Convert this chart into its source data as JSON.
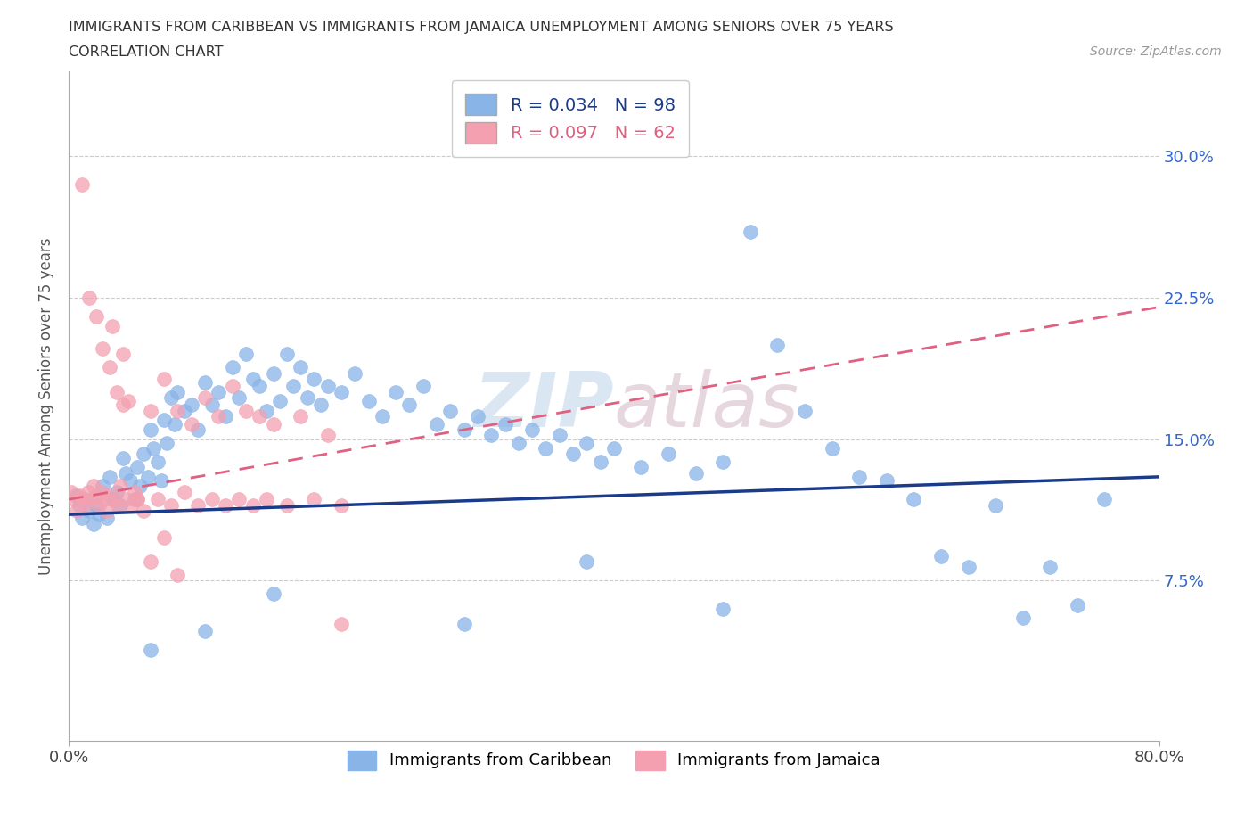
{
  "title_line1": "IMMIGRANTS FROM CARIBBEAN VS IMMIGRANTS FROM JAMAICA UNEMPLOYMENT AMONG SENIORS OVER 75 YEARS",
  "title_line2": "CORRELATION CHART",
  "source_text": "Source: ZipAtlas.com",
  "ylabel": "Unemployment Among Seniors over 75 years",
  "xlim": [
    0.0,
    0.8
  ],
  "ylim": [
    -0.01,
    0.345
  ],
  "ytick_vals": [
    0.075,
    0.15,
    0.225,
    0.3
  ],
  "ytick_labels": [
    "7.5%",
    "15.0%",
    "22.5%",
    "30.0%"
  ],
  "xtick_vals": [
    0.0,
    0.8
  ],
  "xtick_labels": [
    "0.0%",
    "80.0%"
  ],
  "caribbean_color": "#89b4e8",
  "jamaica_color": "#f4a0b0",
  "caribbean_R": 0.034,
  "caribbean_N": 98,
  "jamaica_R": 0.097,
  "jamaica_N": 62,
  "caribbean_label": "Immigrants from Caribbean",
  "jamaica_label": "Immigrants from Jamaica",
  "grid_color": "#cccccc",
  "caribbean_trend_color": "#1a3a8a",
  "jamaica_trend_color": "#e06080",
  "right_tick_color": "#3366cc",
  "background_color": "#ffffff",
  "caribbean_x": [
    0.005,
    0.008,
    0.01,
    0.012,
    0.015,
    0.018,
    0.02,
    0.022,
    0.025,
    0.028,
    0.03,
    0.032,
    0.035,
    0.038,
    0.04,
    0.042,
    0.045,
    0.048,
    0.05,
    0.052,
    0.055,
    0.058,
    0.06,
    0.062,
    0.065,
    0.068,
    0.07,
    0.072,
    0.075,
    0.078,
    0.08,
    0.085,
    0.09,
    0.095,
    0.1,
    0.105,
    0.11,
    0.115,
    0.12,
    0.125,
    0.13,
    0.135,
    0.14,
    0.145,
    0.15,
    0.155,
    0.16,
    0.165,
    0.17,
    0.175,
    0.18,
    0.185,
    0.19,
    0.2,
    0.21,
    0.22,
    0.23,
    0.24,
    0.25,
    0.26,
    0.27,
    0.28,
    0.29,
    0.3,
    0.31,
    0.32,
    0.33,
    0.34,
    0.35,
    0.36,
    0.37,
    0.38,
    0.39,
    0.4,
    0.42,
    0.44,
    0.46,
    0.48,
    0.5,
    0.52,
    0.54,
    0.56,
    0.58,
    0.6,
    0.62,
    0.64,
    0.66,
    0.68,
    0.7,
    0.72,
    0.74,
    0.76,
    0.48,
    0.38,
    0.29,
    0.15,
    0.1,
    0.06
  ],
  "caribbean_y": [
    0.12,
    0.115,
    0.108,
    0.118,
    0.112,
    0.105,
    0.115,
    0.11,
    0.125,
    0.108,
    0.13,
    0.118,
    0.122,
    0.115,
    0.14,
    0.132,
    0.128,
    0.118,
    0.135,
    0.125,
    0.142,
    0.13,
    0.155,
    0.145,
    0.138,
    0.128,
    0.16,
    0.148,
    0.172,
    0.158,
    0.175,
    0.165,
    0.168,
    0.155,
    0.18,
    0.168,
    0.175,
    0.162,
    0.188,
    0.172,
    0.195,
    0.182,
    0.178,
    0.165,
    0.185,
    0.17,
    0.195,
    0.178,
    0.188,
    0.172,
    0.182,
    0.168,
    0.178,
    0.175,
    0.185,
    0.17,
    0.162,
    0.175,
    0.168,
    0.178,
    0.158,
    0.165,
    0.155,
    0.162,
    0.152,
    0.158,
    0.148,
    0.155,
    0.145,
    0.152,
    0.142,
    0.148,
    0.138,
    0.145,
    0.135,
    0.142,
    0.132,
    0.138,
    0.26,
    0.2,
    0.165,
    0.145,
    0.13,
    0.128,
    0.118,
    0.088,
    0.082,
    0.115,
    0.055,
    0.082,
    0.062,
    0.118,
    0.06,
    0.085,
    0.052,
    0.068,
    0.048,
    0.038
  ],
  "jamaica_x": [
    0.002,
    0.004,
    0.006,
    0.008,
    0.01,
    0.012,
    0.014,
    0.016,
    0.018,
    0.02,
    0.022,
    0.024,
    0.026,
    0.028,
    0.03,
    0.032,
    0.034,
    0.036,
    0.038,
    0.04,
    0.042,
    0.044,
    0.046,
    0.048,
    0.05,
    0.055,
    0.06,
    0.065,
    0.07,
    0.075,
    0.08,
    0.085,
    0.09,
    0.095,
    0.1,
    0.105,
    0.11,
    0.115,
    0.12,
    0.125,
    0.13,
    0.135,
    0.14,
    0.145,
    0.15,
    0.16,
    0.17,
    0.18,
    0.19,
    0.2,
    0.01,
    0.015,
    0.02,
    0.025,
    0.03,
    0.035,
    0.04,
    0.05,
    0.06,
    0.07,
    0.08,
    0.2
  ],
  "jamaica_y": [
    0.122,
    0.118,
    0.112,
    0.12,
    0.118,
    0.115,
    0.122,
    0.118,
    0.125,
    0.12,
    0.115,
    0.122,
    0.118,
    0.112,
    0.12,
    0.21,
    0.118,
    0.115,
    0.125,
    0.195,
    0.118,
    0.17,
    0.115,
    0.122,
    0.118,
    0.112,
    0.165,
    0.118,
    0.182,
    0.115,
    0.165,
    0.122,
    0.158,
    0.115,
    0.172,
    0.118,
    0.162,
    0.115,
    0.178,
    0.118,
    0.165,
    0.115,
    0.162,
    0.118,
    0.158,
    0.115,
    0.162,
    0.118,
    0.152,
    0.115,
    0.285,
    0.225,
    0.215,
    0.198,
    0.188,
    0.175,
    0.168,
    0.118,
    0.085,
    0.098,
    0.078,
    0.052
  ]
}
